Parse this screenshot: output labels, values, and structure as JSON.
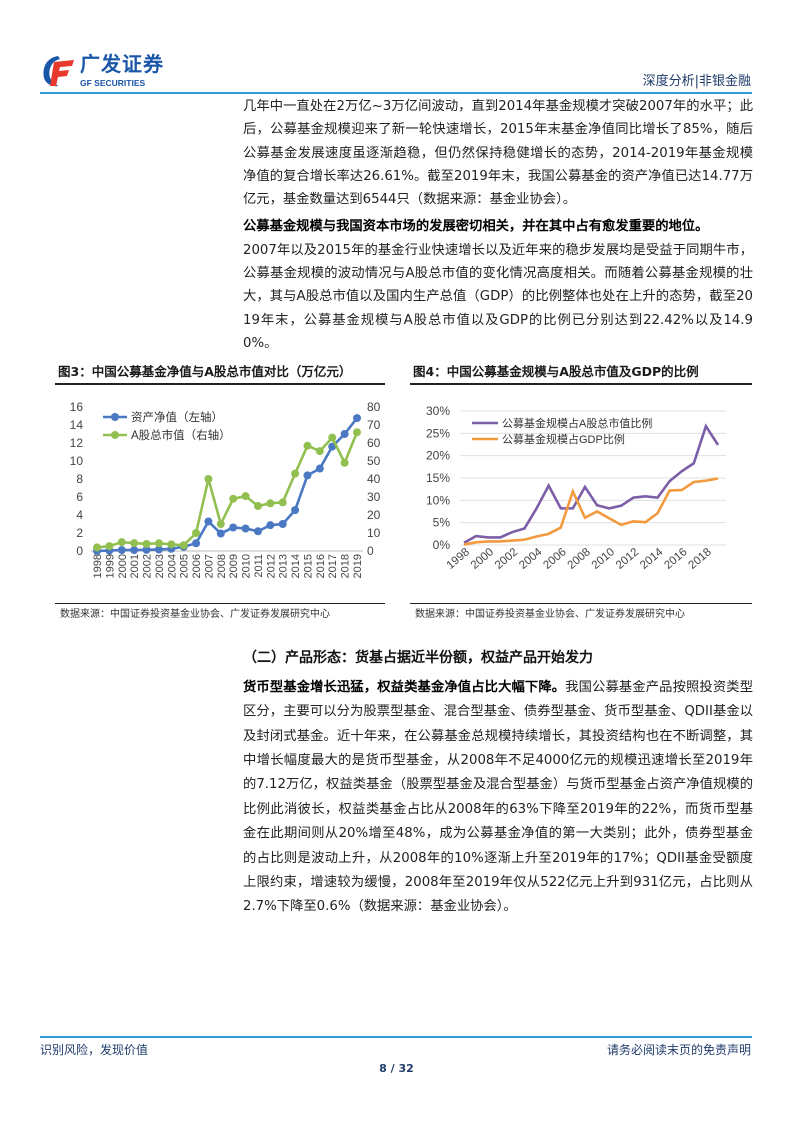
{
  "header": {
    "logo_cn": "广发证券",
    "logo_en": "GF SECURITIES",
    "section": "深度分析|非银金融"
  },
  "body": {
    "para1": "几年中一直处在2万亿~3万亿间波动，直到2014年基金规模才突破2007年的水平；此后，公募基金规模迎来了新一轮快速增长，2015年末基金净值同比增长了85%，随后公募基金发展速度虽逐渐趋稳，但仍然保持稳健增长的态势，2014-2019年基金规模净值的复合增长率达26.61%。截至2019年末，我国公募基金的资产净值已达14.77万亿元，基金数量达到6544只（数据来源：基金业协会）。",
    "heading2": "公募基金规模与我国资本市场的发展密切相关，并在其中占有愈发重要的地位。",
    "para2": "2007年以及2015年的基金行业快速增长以及近年来的稳步发展均是受益于同期牛市，公募基金规模的波动情况与A股总市值的变化情况高度相关。而随着公募基金规模的壮大，其与A股总市值以及国内生产总值（GDP）的比例整体也处在上升的态势，截至2019年末，公募基金规模与A股总市值以及GDP的比例已分别达到22.42%以及14.90%。",
    "section_title": "（二）产品形态：货基占据近半份额，权益产品开始发力",
    "para3_lead": "货币型基金增长迅猛，权益类基金净值占比大幅下降。",
    "para3": "我国公募基金产品按照投资类型区分，主要可以分为股票型基金、混合型基金、债券型基金、货币型基金、QDII基金以及封闭式基金。近十年来，在公募基金总规模持续增长，其投资结构也在不断调整，其中增长幅度最大的是货币型基金，从2008年不足4000亿元的规模迅速增长至2019年的7.12万亿，权益类基金（股票型基金及混合型基金）与货币型基金占资产净值规模的比例此消彼长，权益类基金占比从2008年的63%下降至2019年的22%，而货币型基金在此期间则从20%增至48%，成为公募基金净值的第一大类别；此外，债券型基金的占比则是波动上升，从2008年的10%逐渐上升至2019年的17%；QDII基金受额度上限约束，增速较为缓慢，2008年至2019年仅从522亿元上升到931亿元，占比则从2.7%下降至0.6%（数据来源：基金业协会）。"
  },
  "figures": [
    {
      "title": "图3：中国公募基金净值与A股总市值对比（万亿元）",
      "source": "数据来源：中国证券投资基金业协会、广发证券发展研究中心"
    },
    {
      "title": "图4：中国公募基金规模与A股总市值及GDP的比例",
      "source": "数据来源：中国证券投资基金业协会、广发证券发展研究中心"
    }
  ],
  "chart_data": [
    {
      "type": "line",
      "title": "图3：中国公募基金净值与A股总市值对比（万亿元）",
      "x": [
        "1998",
        "1999",
        "2000",
        "2001",
        "2002",
        "2003",
        "2004",
        "2005",
        "2006",
        "2007",
        "2008",
        "2009",
        "2010",
        "2011",
        "2012",
        "2013",
        "2014",
        "2015",
        "2016",
        "2017",
        "2018",
        "2019"
      ],
      "y_left_ticks": [
        "0",
        "2",
        "4",
        "6",
        "8",
        "10",
        "12",
        "14",
        "16"
      ],
      "y_right_ticks": [
        "0",
        "10",
        "20",
        "30",
        "40",
        "50",
        "60",
        "70",
        "80"
      ],
      "ylim_left": [
        0,
        16
      ],
      "ylim_right": [
        0,
        80
      ],
      "legend_position": "top-left",
      "grid": false,
      "series": [
        {
          "name": "资产净值（左轴）",
          "axis": "left",
          "color": "#4a78c2",
          "marker": "circle",
          "values": [
            0.01,
            0.05,
            0.1,
            0.1,
            0.13,
            0.16,
            0.25,
            0.47,
            0.86,
            3.28,
            1.94,
            2.61,
            2.5,
            2.19,
            2.87,
            3.0,
            4.54,
            8.4,
            9.16,
            11.6,
            13.0,
            14.77
          ]
        },
        {
          "name": "A股总市值（右轴）",
          "axis": "right",
          "color": "#92c050",
          "marker": "circle",
          "values": [
            2.0,
            2.7,
            4.9,
            4.4,
            3.9,
            4.3,
            3.7,
            3.2,
            10.0,
            40.0,
            15.0,
            29.0,
            30.5,
            25.0,
            26.5,
            27.0,
            43.0,
            58.5,
            55.5,
            63.0,
            49.0,
            66.0
          ]
        }
      ]
    },
    {
      "type": "line",
      "title": "图4：中国公募基金规模与A股总市值及GDP的比例",
      "x": [
        "1998",
        "1999",
        "2000",
        "2001",
        "2002",
        "2003",
        "2004",
        "2005",
        "2006",
        "2007",
        "2008",
        "2009",
        "2010",
        "2011",
        "2012",
        "2013",
        "2014",
        "2015",
        "2016",
        "2017",
        "2018",
        "2019"
      ],
      "x_tick_labels": [
        "1998",
        "2000",
        "2002",
        "2004",
        "2006",
        "2008",
        "2010",
        "2012",
        "2014",
        "2016",
        "2018"
      ],
      "y_ticks": [
        "0%",
        "5%",
        "10%",
        "15%",
        "20%",
        "25%",
        "30%"
      ],
      "ylim": [
        0,
        30
      ],
      "legend_position": "top-left",
      "grid": true,
      "series": [
        {
          "name": "公募基金规模占A股总市值比例",
          "color": "#7b5ea7",
          "values": [
            0.5,
            2.0,
            1.7,
            1.7,
            2.9,
            3.7,
            8.2,
            13.3,
            8.2,
            8.2,
            13.0,
            8.9,
            8.2,
            8.8,
            10.6,
            10.9,
            10.6,
            14.3,
            16.5,
            18.3,
            26.6,
            22.42
          ]
        },
        {
          "name": "公募基金规模占GDP比例",
          "color": "#f39a3e",
          "values": [
            0.1,
            0.6,
            0.8,
            0.8,
            1.0,
            1.2,
            1.9,
            2.5,
            3.9,
            12.0,
            6.1,
            7.5,
            6.0,
            4.5,
            5.3,
            5.1,
            7.1,
            12.2,
            12.3,
            14.1,
            14.4,
            14.9
          ]
        }
      ]
    }
  ],
  "footer": {
    "left": "识别风险，发现价值",
    "right": "请务必阅读末页的免责声明",
    "page": "8 / 32"
  }
}
